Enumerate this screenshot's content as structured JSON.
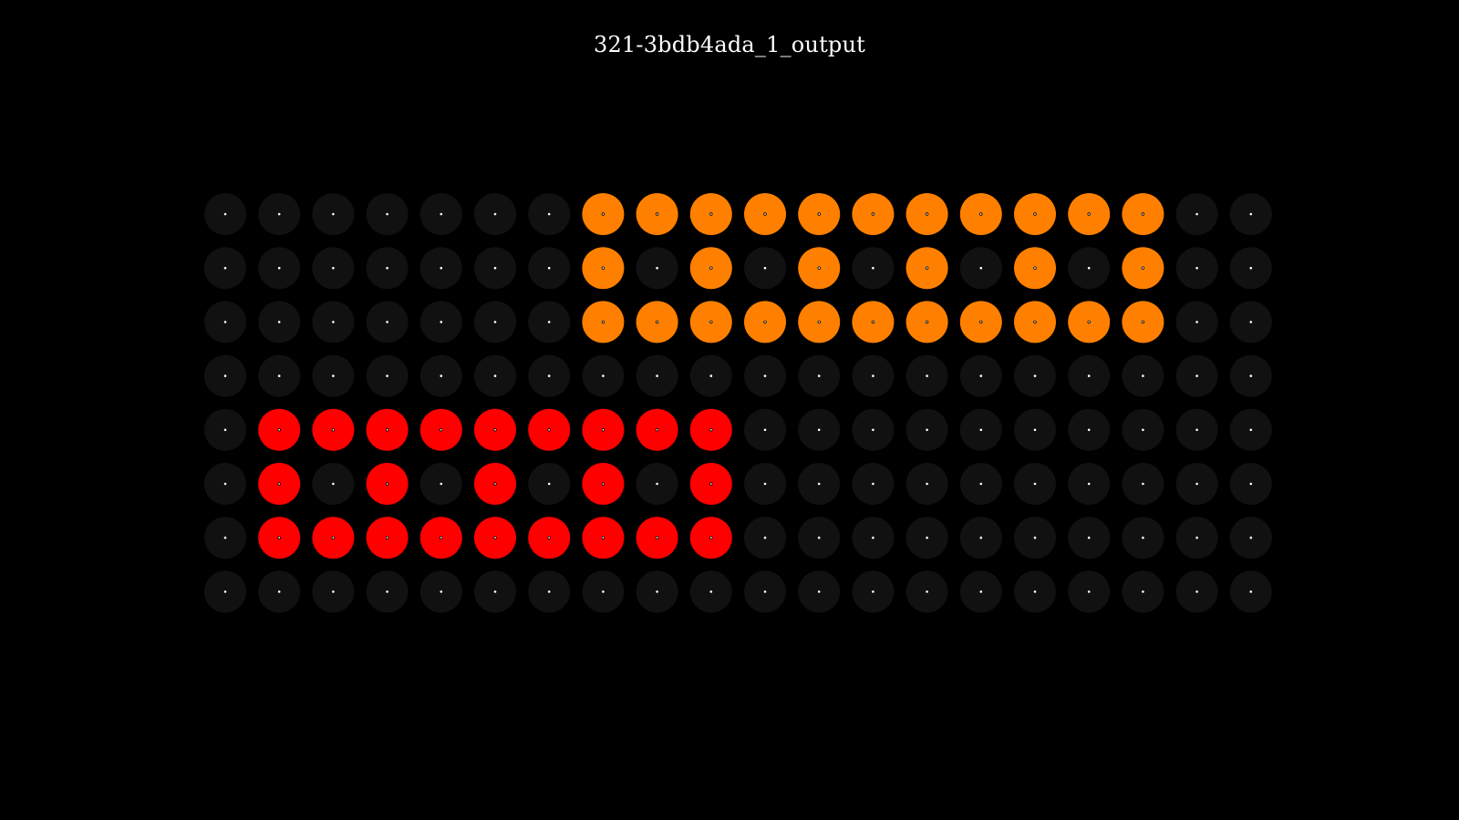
{
  "title": "321-3bdb4ada_1_output",
  "palette": {
    "0": "#111111",
    "1": "#FF0000",
    "2": "#FF8000"
  },
  "center_dot_color": "#ffffff",
  "grid": [
    [
      0,
      0,
      0,
      0,
      0,
      0,
      0,
      2,
      2,
      2,
      2,
      2,
      2,
      2,
      2,
      2,
      2,
      2,
      0,
      0
    ],
    [
      0,
      0,
      0,
      0,
      0,
      0,
      0,
      2,
      0,
      2,
      0,
      2,
      0,
      2,
      0,
      2,
      0,
      2,
      0,
      0
    ],
    [
      0,
      0,
      0,
      0,
      0,
      0,
      0,
      2,
      2,
      2,
      2,
      2,
      2,
      2,
      2,
      2,
      2,
      2,
      0,
      0
    ],
    [
      0,
      0,
      0,
      0,
      0,
      0,
      0,
      0,
      0,
      0,
      0,
      0,
      0,
      0,
      0,
      0,
      0,
      0,
      0,
      0
    ],
    [
      0,
      1,
      1,
      1,
      1,
      1,
      1,
      1,
      1,
      1,
      0,
      0,
      0,
      0,
      0,
      0,
      0,
      0,
      0,
      0
    ],
    [
      0,
      1,
      0,
      1,
      0,
      1,
      0,
      1,
      0,
      1,
      0,
      0,
      0,
      0,
      0,
      0,
      0,
      0,
      0,
      0
    ],
    [
      0,
      1,
      1,
      1,
      1,
      1,
      1,
      1,
      1,
      1,
      0,
      0,
      0,
      0,
      0,
      0,
      0,
      0,
      0,
      0
    ],
    [
      0,
      0,
      0,
      0,
      0,
      0,
      0,
      0,
      0,
      0,
      0,
      0,
      0,
      0,
      0,
      0,
      0,
      0,
      0,
      0
    ]
  ]
}
